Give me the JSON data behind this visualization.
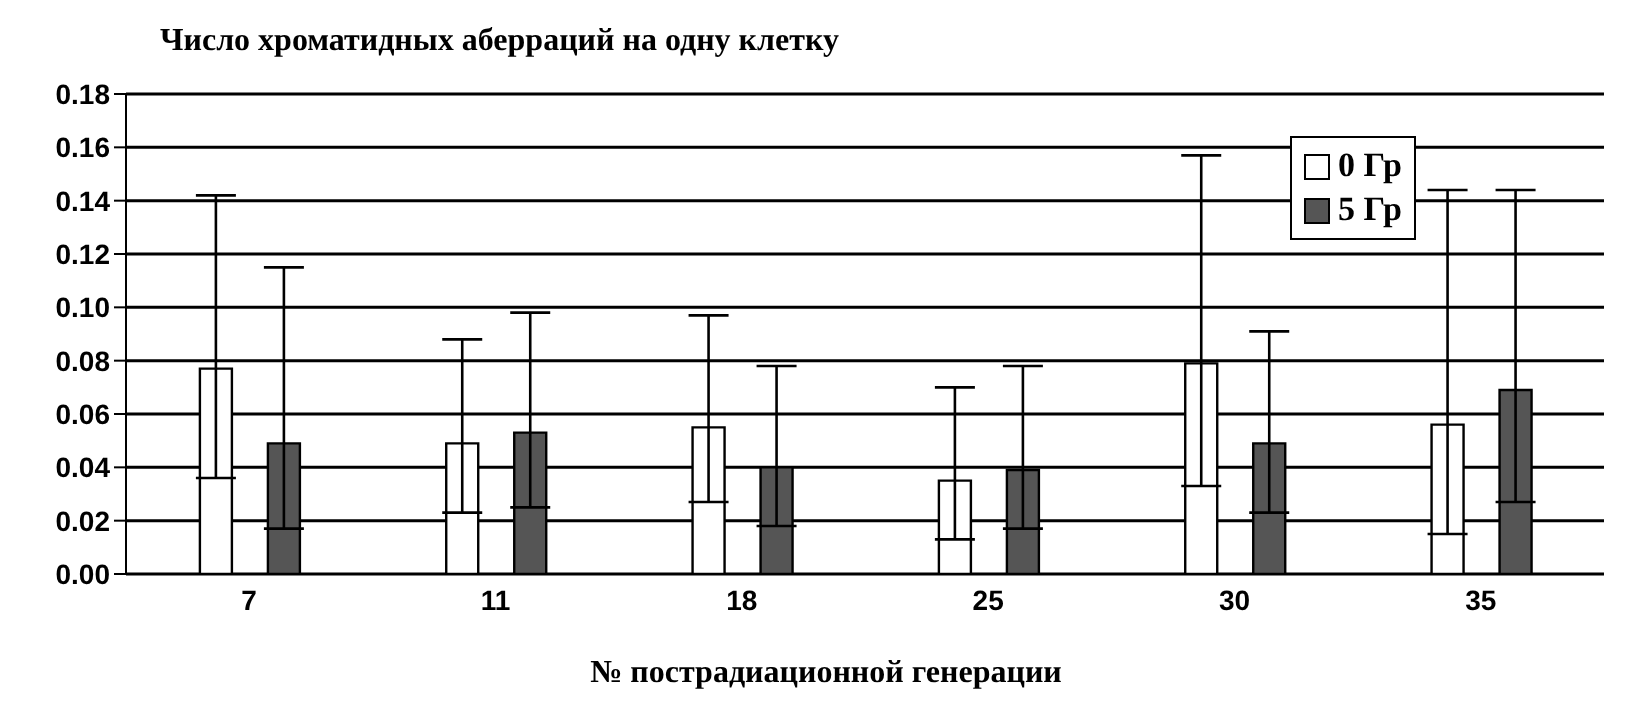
{
  "chart_data": {
    "type": "bar",
    "title": "Число хроматидных аберраций на одну клетку",
    "xlabel": "№ пострадиационной генерации",
    "categories": [
      "7",
      "11",
      "18",
      "25",
      "30",
      "35"
    ],
    "series": [
      {
        "name": "0 Гр",
        "color": "#ffffff",
        "values": [
          0.077,
          0.049,
          0.055,
          0.035,
          0.079,
          0.056
        ],
        "errors": [
          [
            0.036,
            0.142
          ],
          [
            0.023,
            0.088
          ],
          [
            0.027,
            0.097
          ],
          [
            0.013,
            0.07
          ],
          [
            0.033,
            0.157
          ],
          [
            0.015,
            0.144
          ]
        ]
      },
      {
        "name": "5 Гр",
        "color": "#555555",
        "values": [
          0.049,
          0.053,
          0.04,
          0.039,
          0.049,
          0.069
        ],
        "errors": [
          [
            0.017,
            0.115
          ],
          [
            0.025,
            0.098
          ],
          [
            0.018,
            0.078
          ],
          [
            0.017,
            0.078
          ],
          [
            0.023,
            0.091
          ],
          [
            0.027,
            0.144
          ]
        ]
      }
    ],
    "ylim": [
      0,
      0.18
    ],
    "yticks": [
      {
        "value": 0,
        "label": "0.00"
      },
      {
        "value": 0.02,
        "label": "0.02"
      },
      {
        "value": 0.04,
        "label": "0.04"
      },
      {
        "value": 0.06,
        "label": "0.06"
      },
      {
        "value": 0.08,
        "label": "0.08"
      },
      {
        "value": 0.1,
        "label": "0.10"
      },
      {
        "value": 0.12,
        "label": "0.12"
      },
      {
        "value": 0.14,
        "label": "0.14"
      },
      {
        "value": 0.16,
        "label": "0.16"
      },
      {
        "value": 0.18,
        "label": "0.18"
      }
    ],
    "grid": "y",
    "legend": "top right"
  }
}
